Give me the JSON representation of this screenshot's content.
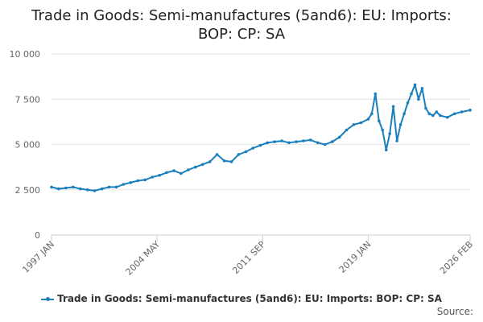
{
  "chart_data": {
    "type": "line",
    "title_line1": "Trade in Goods: Semi-manufactures (5and6): EU: Imports:",
    "title_line2": "BOP: CP: SA",
    "xlabel": "",
    "ylabel": "",
    "ylim": [
      0,
      10000
    ],
    "yticks": [
      0,
      2500,
      5000,
      7500,
      10000
    ],
    "ytick_labels": [
      "0",
      "2 500",
      "5 000",
      "7 500",
      "10 000"
    ],
    "xrange": [
      1997.0,
      2026.083
    ],
    "xticks": [
      1997.0,
      2004.333,
      2011.667,
      2019.0,
      2026.083
    ],
    "xtick_labels": [
      "1997 JAN",
      "2004 MAY",
      "2011 SEP",
      "2019 JAN",
      "2026 FEB"
    ],
    "grid": true,
    "legend_position": "bottom",
    "series": [
      {
        "name": "Trade in Goods: Semi-manufactures (5and6): EU: Imports: BOP: CP: SA",
        "color": "#1a7fbd",
        "x": [
          1997.0,
          1997.5,
          1998.0,
          1998.5,
          1999.0,
          1999.5,
          2000.0,
          2000.5,
          2001.0,
          2001.5,
          2002.0,
          2002.5,
          2003.0,
          2003.5,
          2004.0,
          2004.5,
          2005.0,
          2005.5,
          2006.0,
          2006.5,
          2007.0,
          2007.5,
          2008.0,
          2008.5,
          2009.0,
          2009.5,
          2010.0,
          2010.5,
          2011.0,
          2011.5,
          2012.0,
          2012.5,
          2013.0,
          2013.5,
          2014.0,
          2014.5,
          2015.0,
          2015.5,
          2016.0,
          2016.5,
          2017.0,
          2017.5,
          2018.0,
          2018.5,
          2019.0,
          2019.25,
          2019.5,
          2019.75,
          2020.0,
          2020.25,
          2020.5,
          2020.75,
          2021.0,
          2021.25,
          2021.5,
          2021.75,
          2022.0,
          2022.25,
          2022.5,
          2022.75,
          2023.0,
          2023.25,
          2023.5,
          2023.75,
          2024.0,
          2024.5,
          2025.0,
          2025.5,
          2026.083
        ],
        "values": [
          2650,
          2550,
          2600,
          2650,
          2550,
          2500,
          2450,
          2550,
          2650,
          2650,
          2800,
          2900,
          3000,
          3050,
          3200,
          3300,
          3450,
          3550,
          3400,
          3600,
          3750,
          3900,
          4050,
          4450,
          4100,
          4050,
          4450,
          4600,
          4800,
          4950,
          5100,
          5150,
          5200,
          5100,
          5150,
          5200,
          5250,
          5100,
          5000,
          5150,
          5400,
          5800,
          6100,
          6200,
          6400,
          6700,
          7800,
          6300,
          5800,
          4700,
          5600,
          7100,
          5200,
          6100,
          6700,
          7300,
          7800,
          8300,
          7500,
          8100,
          7000,
          6700,
          6600,
          6800,
          6600,
          6500,
          6700,
          6800,
          6900
        ]
      }
    ]
  },
  "legend": {
    "label": "Trade in Goods: Semi-manufactures (5and6): EU: Imports: BOP: CP: SA"
  },
  "footer": {
    "source": "Source:"
  }
}
